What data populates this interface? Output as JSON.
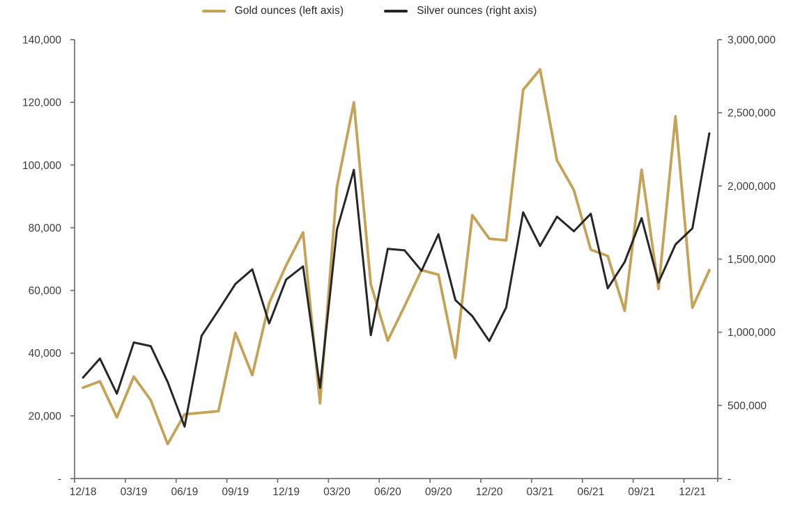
{
  "legend": {
    "items": [
      {
        "label": "Gold ounces (left axis)",
        "color": "#C5A256"
      },
      {
        "label": "Silver ounces (right axis)",
        "color": "#262626"
      }
    ]
  },
  "colors": {
    "gold_series": "#C5A256",
    "silver_series": "#262626",
    "axis_line": "#6F6F6F",
    "tick_text": "#3B3B3B",
    "background": "#FFFFFF"
  },
  "chart_data": {
    "type": "line",
    "title": "",
    "legend_position": "top",
    "grid": false,
    "plot_style": "between-ticks",
    "categories": [
      "12/18",
      "01/19",
      "02/19",
      "03/19",
      "04/19",
      "05/19",
      "06/19",
      "07/19",
      "08/19",
      "09/19",
      "10/19",
      "11/19",
      "12/19",
      "01/20",
      "02/20",
      "03/20",
      "04/20",
      "05/20",
      "06/20",
      "07/20",
      "08/20",
      "09/20",
      "10/20",
      "11/20",
      "12/20",
      "01/21",
      "02/21",
      "03/21",
      "04/21",
      "05/21",
      "06/21",
      "07/21",
      "08/21",
      "09/21",
      "10/21",
      "11/21",
      "12/21",
      "01/22"
    ],
    "x_axis": {
      "tick_labels": [
        "12/18",
        "03/19",
        "06/19",
        "09/19",
        "12/19",
        "03/20",
        "06/20",
        "09/20",
        "12/20",
        "03/21",
        "06/21",
        "09/21",
        "12/21"
      ],
      "label_every_months": 3
    },
    "left_axis": {
      "min": 0,
      "max": 140000,
      "step": 20000,
      "tick_labels_top_to_bottom": [
        "140,000",
        "120,000",
        "100,000",
        "80,000",
        "60,000",
        "40,000",
        "20,000",
        "-"
      ]
    },
    "right_axis": {
      "min": 0,
      "max": 3000000,
      "step": 500000,
      "tick_labels_top_to_bottom": [
        "3,000,000",
        "2,500,000",
        "2,000,000",
        "1,500,000",
        "1,000,000",
        "500,000",
        "-"
      ]
    },
    "series": [
      {
        "name": "Gold ounces (left axis)",
        "axis": "left",
        "color": "#C5A256",
        "values": [
          29000,
          31000,
          19500,
          32500,
          25000,
          11000,
          20500,
          21000,
          21500,
          46500,
          33000,
          56000,
          68000,
          78500,
          24000,
          93000,
          120000,
          62000,
          44000,
          55000,
          66500,
          65000,
          38500,
          84000,
          76500,
          76000,
          124000,
          130500,
          101500,
          92000,
          73000,
          71000,
          53500,
          98500,
          60500,
          115500,
          54500,
          66500
        ]
      },
      {
        "name": "Silver ounces (right axis)",
        "axis": "right",
        "color": "#262626",
        "values": [
          690000,
          820000,
          580000,
          930000,
          905000,
          660000,
          355000,
          975000,
          1150000,
          1330000,
          1430000,
          1060000,
          1360000,
          1450000,
          620000,
          1700000,
          2110000,
          980000,
          1570000,
          1560000,
          1420000,
          1670000,
          1220000,
          1110000,
          940000,
          1170000,
          1820000,
          1590000,
          1790000,
          1690000,
          1810000,
          1300000,
          1480000,
          1780000,
          1340000,
          1600000,
          1710000,
          2360000
        ]
      }
    ]
  }
}
